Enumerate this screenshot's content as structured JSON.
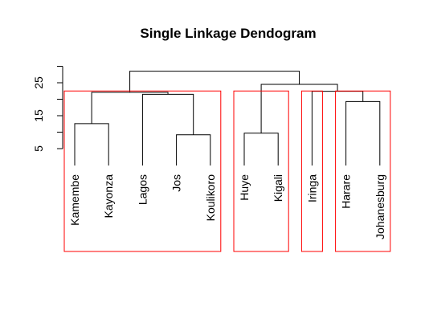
{
  "chart_data": {
    "type": "dendrogram",
    "title": "Single Linkage Dendogram",
    "xlabel": "",
    "ylabel": "",
    "y_ticks": [
      5,
      15,
      25
    ],
    "ylim": [
      0,
      30
    ],
    "leaves": [
      "Kamembe",
      "Kayonza",
      "Lagos",
      "Jos",
      "Koulikoro",
      "Huye",
      "Kigali",
      "Iringa",
      "Harare",
      "Johanesburg"
    ],
    "merges": [
      {
        "left": "Jos",
        "right": "Koulikoro",
        "height": 9.2
      },
      {
        "left": "Huye",
        "right": "Kigali",
        "height": 9.7
      },
      {
        "left": "Kamembe",
        "right": "Kayonza",
        "height": 12.6
      },
      {
        "left": "Harare",
        "right": "Johanesburg",
        "height": 19.3
      },
      {
        "left": "Lagos",
        "right": "Jos+Koulikoro",
        "height": 21.5
      },
      {
        "left": "Kamembe+Kayonza",
        "right": "Lagos+Jos+Koulikoro",
        "height": 22.1
      },
      {
        "left": "Iringa",
        "right": "Harare+Johanesburg",
        "height": 22.4
      },
      {
        "left": "Huye+Kigali",
        "right": "Iringa+Harare+Johanesburg",
        "height": 24.5
      },
      {
        "left": "Kamembe+Kayonza+Lagos+Jos+Koulikoro",
        "right": "Huye+Kigali+Iringa+Harare+Johanesburg",
        "height": 28.5
      }
    ],
    "cluster_boxes": [
      {
        "members": [
          "Kamembe",
          "Kayonza",
          "Lagos",
          "Jos",
          "Koulikoro"
        ]
      },
      {
        "members": [
          "Huye",
          "Kigali"
        ]
      },
      {
        "members": [
          "Iringa"
        ]
      },
      {
        "members": [
          "Harare",
          "Johanesburg"
        ]
      }
    ],
    "box_top_height": 22.5,
    "colors": {
      "tree": "#000000",
      "boxes": "#ff0000",
      "axis": "#000000"
    }
  }
}
